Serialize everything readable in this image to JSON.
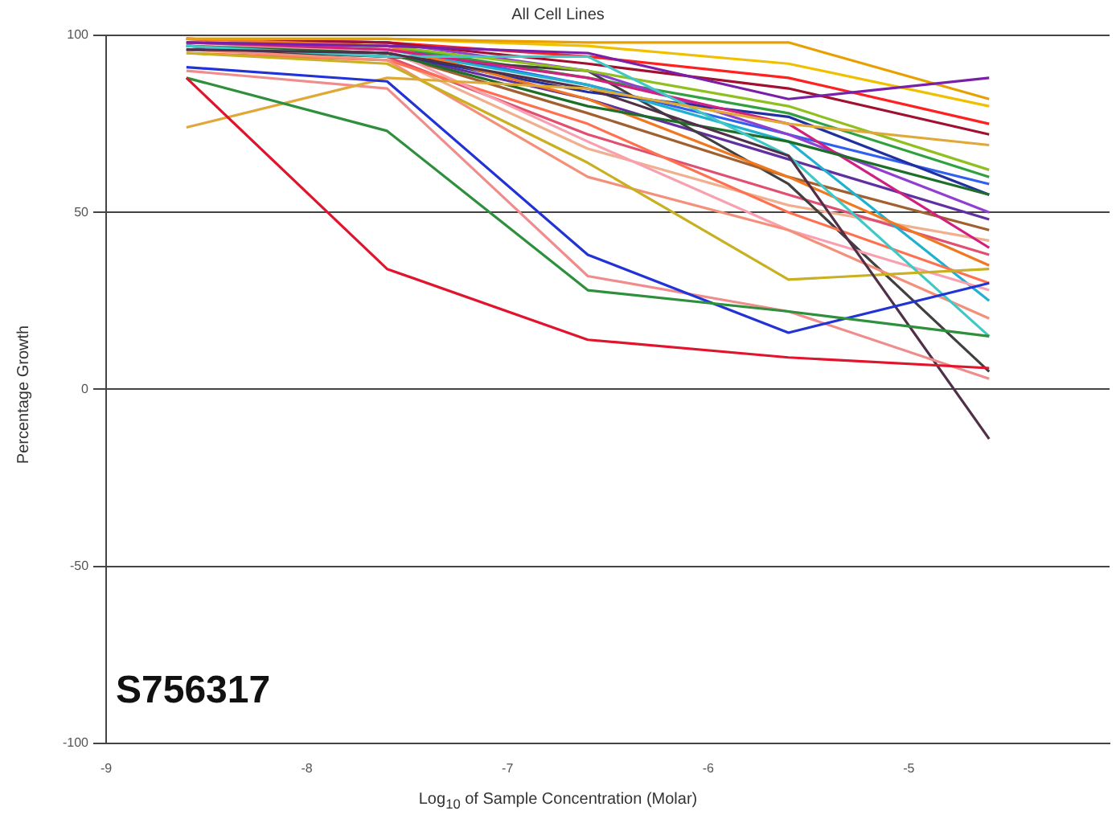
{
  "chart_data": {
    "type": "line",
    "title": "All Cell Lines",
    "xlabel": "Log$_{10}$ of Sample Concentration (Molar)",
    "ylabel": "Percentage Growth",
    "annotations": [
      "S756317"
    ],
    "x": [
      -8.6,
      -7.6,
      -6.6,
      -5.6,
      -4.6
    ],
    "xlim": [
      -9,
      -4
    ],
    "xticks": [
      -9,
      -8,
      -7,
      -6,
      -5
    ],
    "ylim": [
      -100,
      100
    ],
    "yticks": [
      -100,
      -50,
      0,
      50,
      100
    ],
    "grid": "y",
    "legend": false,
    "marker": "none",
    "line_style": "solid",
    "series": [
      {
        "color": "#e0142c",
        "values": [
          88,
          34,
          14,
          9,
          6
        ]
      },
      {
        "color": "#2e8f3c",
        "values": [
          88,
          73,
          28,
          22,
          15
        ]
      },
      {
        "color": "#2233d6",
        "values": [
          91,
          87,
          38,
          16,
          30
        ]
      },
      {
        "color": "#e0a838",
        "values": [
          74,
          88,
          85,
          75,
          69
        ]
      },
      {
        "color": "#f08c8c",
        "values": [
          90,
          85,
          32,
          22,
          3
        ]
      },
      {
        "color": "#503048",
        "values": [
          96,
          95,
          85,
          66,
          -14
        ]
      },
      {
        "color": "#c8b020",
        "values": [
          95,
          92,
          64,
          31,
          34
        ]
      },
      {
        "color": "#7a20a8",
        "values": [
          98,
          97,
          95,
          82,
          88
        ]
      },
      {
        "color": "#40c8c8",
        "values": [
          97,
          94,
          94,
          66,
          15
        ]
      },
      {
        "color": "#e8a000",
        "values": [
          99,
          99,
          98,
          98,
          82
        ]
      },
      {
        "color": "#f4907a",
        "values": [
          96,
          93,
          60,
          45,
          20
        ]
      },
      {
        "color": "#1e6e2a",
        "values": [
          97,
          95,
          80,
          70,
          55
        ]
      },
      {
        "color": "#d02080",
        "values": [
          98,
          96,
          88,
          75,
          40
        ]
      },
      {
        "color": "#f07820",
        "values": [
          99,
          97,
          82,
          60,
          35
        ]
      },
      {
        "color": "#2030a0",
        "values": [
          96,
          95,
          84,
          77,
          55
        ]
      },
      {
        "color": "#f8a0b0",
        "values": [
          97,
          96,
          70,
          45,
          28
        ]
      },
      {
        "color": "#90c020",
        "values": [
          98,
          97,
          90,
          80,
          62
        ]
      },
      {
        "color": "#ff7050",
        "values": [
          95,
          93,
          75,
          50,
          30
        ]
      },
      {
        "color": "#a01030",
        "values": [
          99,
          98,
          92,
          85,
          72
        ]
      },
      {
        "color": "#20b0d0",
        "values": [
          98,
          96,
          86,
          70,
          25
        ]
      },
      {
        "color": "#a06030",
        "values": [
          97,
          95,
          78,
          60,
          45
        ]
      },
      {
        "color": "#9040d0",
        "values": [
          99,
          98,
          90,
          72,
          50
        ]
      },
      {
        "color": "#404040",
        "values": [
          96,
          94,
          90,
          58,
          5
        ]
      },
      {
        "color": "#f0c000",
        "values": [
          99,
          99,
          97,
          92,
          80
        ]
      },
      {
        "color": "#e05070",
        "values": [
          97,
          94,
          72,
          55,
          38
        ]
      },
      {
        "color": "#30a040",
        "values": [
          98,
          97,
          88,
          78,
          60
        ]
      },
      {
        "color": "#3060f0",
        "values": [
          98,
          97,
          86,
          72,
          58
        ]
      },
      {
        "color": "#ff2020",
        "values": [
          99,
          98,
          94,
          88,
          75
        ]
      },
      {
        "color": "#f0b090",
        "values": [
          96,
          94,
          68,
          52,
          42
        ]
      },
      {
        "color": "#6030a0",
        "values": [
          97,
          95,
          82,
          65,
          48
        ]
      }
    ]
  }
}
